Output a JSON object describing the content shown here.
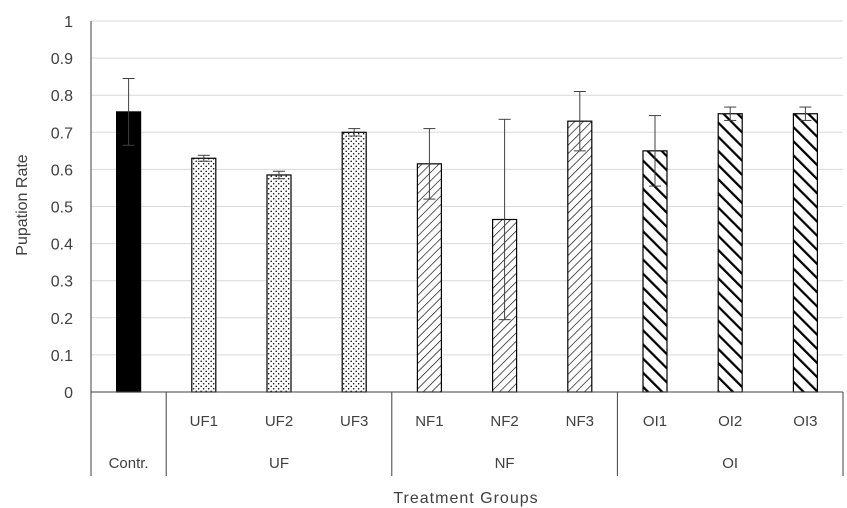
{
  "chart_data": {
    "type": "bar",
    "title": "",
    "xlabel": "Treatment Groups",
    "ylabel": "Pupation Rate",
    "ylim": [
      0,
      1
    ],
    "yticks": [
      "0",
      "0.1",
      "0.2",
      "0.3",
      "0.4",
      "0.5",
      "0.6",
      "0.7",
      "0.8",
      "0.9",
      "1"
    ],
    "grid": true,
    "legend": "none",
    "categories": [
      "",
      "UF1",
      "UF2",
      "UF3",
      "NF1",
      "NF2",
      "NF3",
      "OI1",
      "OI2",
      "OI3"
    ],
    "groups": [
      {
        "label": "Contr.",
        "span": 1
      },
      {
        "label": "UF",
        "span": 3
      },
      {
        "label": "NF",
        "span": 3
      },
      {
        "label": "OI",
        "span": 3
      }
    ],
    "values": [
      0.755,
      0.63,
      0.585,
      0.7,
      0.615,
      0.465,
      0.73,
      0.65,
      0.75,
      0.75
    ],
    "error": [
      0.09,
      0.008,
      0.01,
      0.01,
      0.095,
      0.27,
      0.08,
      0.095,
      0.018,
      0.018
    ],
    "fills": [
      "solid",
      "dots",
      "dots",
      "dots",
      "diag-fine",
      "diag-fine",
      "diag-fine",
      "diag-bold",
      "diag-bold",
      "diag-bold"
    ],
    "colors": {
      "bar_stroke": "#000000",
      "grid": "#d9d9d9",
      "axis": "#404040",
      "solid": "#000000"
    }
  }
}
